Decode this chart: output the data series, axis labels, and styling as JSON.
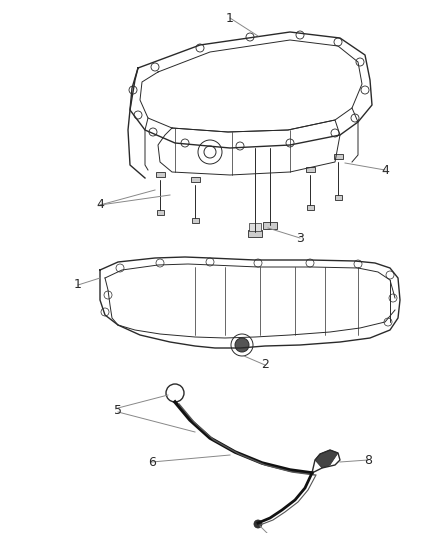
{
  "background_color": "#ffffff",
  "line_color": "#2a2a2a",
  "label_color": "#2a2a2a",
  "leader_color": "#888888",
  "figsize": [
    4.38,
    5.33
  ],
  "dpi": 100
}
